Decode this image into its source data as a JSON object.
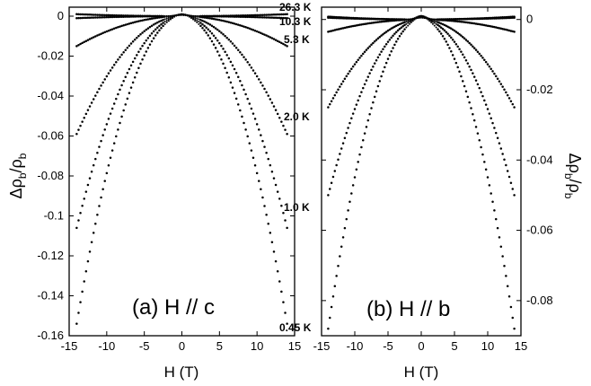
{
  "chart_data": [
    {
      "type": "scatter",
      "panel_label": "(a) H // c",
      "xlabel": "H (T)",
      "ylabel": {
        "main": "Δρ",
        "sub": "b",
        "mid": "/ρ",
        "sub2": "b"
      },
      "xlim": [
        -15,
        15
      ],
      "ylim": [
        -0.16,
        0.0045
      ],
      "xticks": [
        -15,
        -10,
        -5,
        0,
        5,
        10,
        15
      ],
      "yticks": [
        0,
        -0.02,
        -0.04,
        -0.06,
        -0.08,
        -0.1,
        -0.12,
        -0.14,
        -0.16
      ],
      "ytick_labels": [
        "0",
        "-0.02",
        "-0.04",
        "-0.06",
        "-0.08",
        "-0.1",
        "-0.12",
        "-0.14",
        "-0.16"
      ],
      "series": [
        {
          "name": "26.3 K",
          "peak": 0.0005,
          "values": [
            {
              "x": -14,
              "y": 0.001
            },
            {
              "x": 0,
              "y": 0.0
            },
            {
              "x": 14,
              "y": 0.001
            }
          ]
        },
        {
          "name": "10.3 K",
          "peak": 0.0008,
          "values": [
            {
              "x": -14,
              "y": -0.001
            },
            {
              "x": 0,
              "y": 0.0
            },
            {
              "x": 14,
              "y": -0.001
            }
          ]
        },
        {
          "name": "5.3 K",
          "peak": 0.001,
          "values": [
            {
              "x": -14,
              "y": -0.015
            },
            {
              "x": 0,
              "y": 0.0
            },
            {
              "x": 14,
              "y": -0.015
            }
          ]
        },
        {
          "name": "2.0 K",
          "peak": 0.001,
          "values": [
            {
              "x": -14,
              "y": -0.059
            },
            {
              "x": 0,
              "y": 0.0
            },
            {
              "x": 14,
              "y": -0.059
            }
          ]
        },
        {
          "name": "1.0 K",
          "peak": 0.001,
          "values": [
            {
              "x": -14,
              "y": -0.106
            },
            {
              "x": 0,
              "y": 0.0
            },
            {
              "x": 14,
              "y": -0.106
            }
          ]
        },
        {
          "name": "0.45 K",
          "peak": 0.001,
          "values": [
            {
              "x": -14,
              "y": -0.154
            },
            {
              "x": 0,
              "y": 0.0
            },
            {
              "x": 14,
              "y": -0.154
            }
          ]
        }
      ]
    },
    {
      "type": "scatter",
      "panel_label": "(b) H // b",
      "xlabel": "H (T)",
      "ylabel": {
        "main": "Δρ",
        "sub": "b",
        "mid": "/ρ",
        "sub2": "b"
      },
      "xlim": [
        -15,
        15
      ],
      "ylim": [
        -0.09,
        0.0035
      ],
      "xticks": [
        -15,
        -10,
        -5,
        0,
        5,
        10,
        15
      ],
      "yticks": [
        0,
        -0.02,
        -0.04,
        -0.06,
        -0.08
      ],
      "ytick_labels": [
        "0",
        "-0.02",
        "-0.04",
        "-0.06",
        "-0.08"
      ],
      "series": [
        {
          "name": "26.3 K",
          "peak": 0.0005,
          "values": [
            {
              "x": -14,
              "y": 0.0008
            },
            {
              "x": 0,
              "y": 0.0
            },
            {
              "x": 14,
              "y": 0.0008
            }
          ]
        },
        {
          "name": "10.3 K",
          "peak": 0.0008,
          "values": [
            {
              "x": -14,
              "y": 0.0005
            },
            {
              "x": 0,
              "y": 0.0
            },
            {
              "x": 14,
              "y": 0.0005
            }
          ]
        },
        {
          "name": "5.3 K",
          "peak": 0.001,
          "values": [
            {
              "x": -14,
              "y": -0.0035
            },
            {
              "x": 0,
              "y": 0.0
            },
            {
              "x": 14,
              "y": -0.0035
            }
          ]
        },
        {
          "name": "2.0 K",
          "peak": 0.001,
          "values": [
            {
              "x": -14,
              "y": -0.025
            },
            {
              "x": 0,
              "y": 0.0
            },
            {
              "x": 14,
              "y": -0.025
            }
          ]
        },
        {
          "name": "1.0 K",
          "peak": 0.001,
          "values": [
            {
              "x": -14,
              "y": -0.05
            },
            {
              "x": 0,
              "y": 0.0
            },
            {
              "x": 14,
              "y": -0.05
            }
          ]
        },
        {
          "name": "0.45 K",
          "peak": 0.001,
          "values": [
            {
              "x": -14,
              "y": -0.088
            },
            {
              "x": 0,
              "y": 0.0
            },
            {
              "x": 14,
              "y": -0.088
            }
          ]
        }
      ]
    }
  ],
  "temperature_labels": [
    "26.3 K",
    "10.3 K",
    "5.3 K",
    "2.0 K",
    "1.0 K",
    "0.45 K"
  ]
}
